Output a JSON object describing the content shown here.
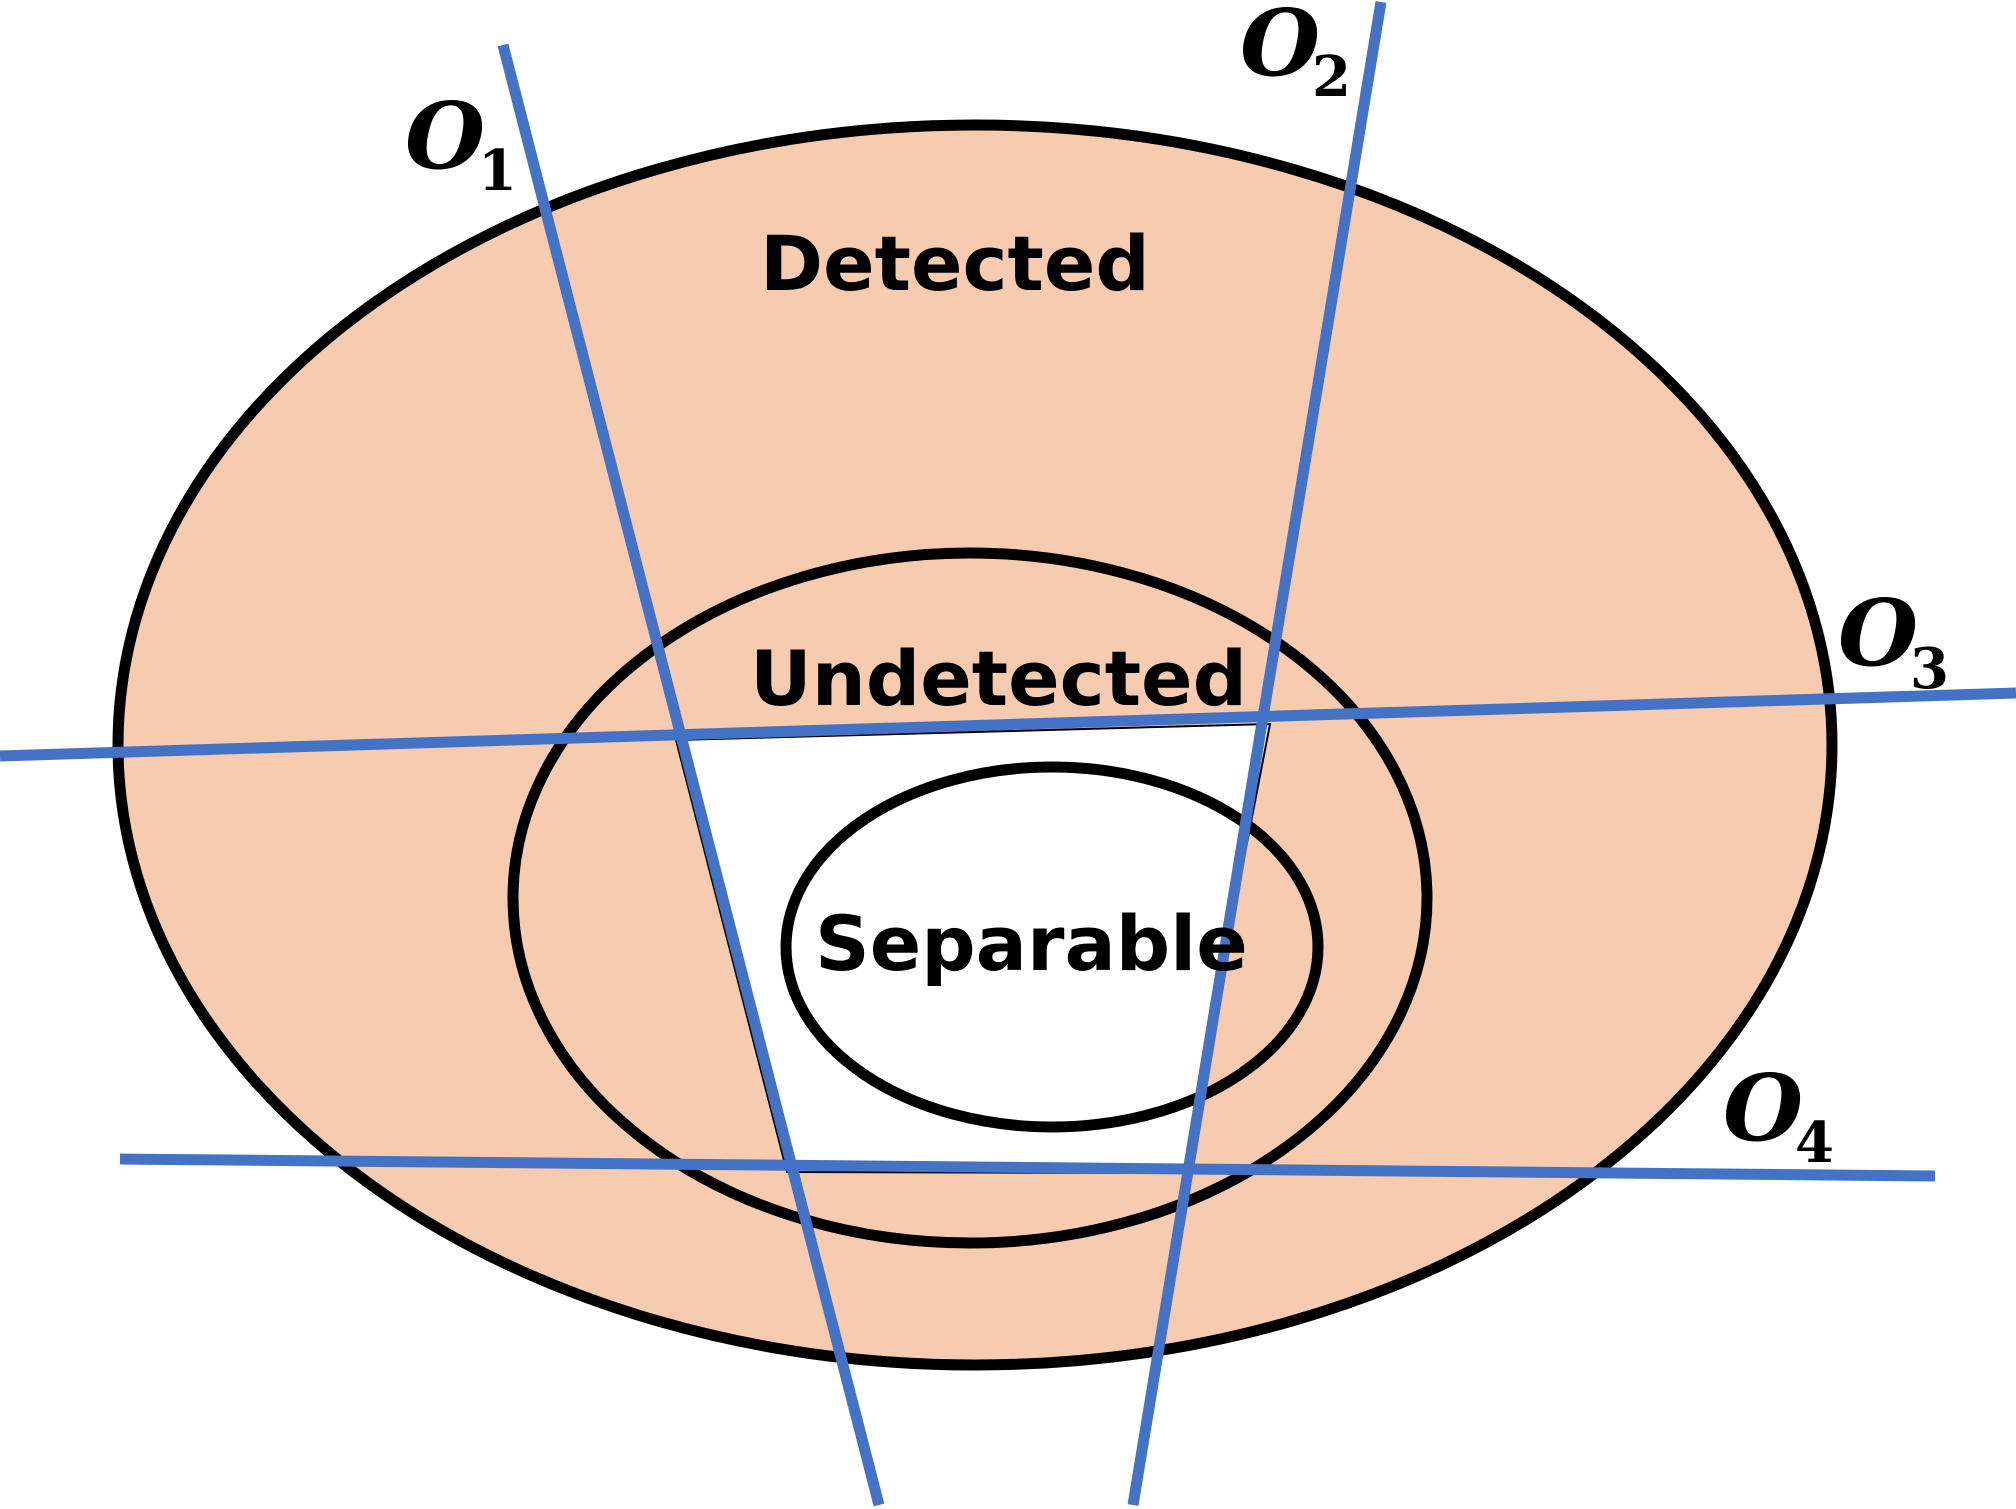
{
  "colors": {
    "detected_fill": "#f6cbb0",
    "undetected_fill": "#ffffff",
    "outline": "#000000",
    "observation_line": "#4472c4"
  },
  "regions": {
    "detected": "Detected",
    "undetected": "Undetected",
    "separable": "Separable"
  },
  "observations": [
    {
      "letter": "O",
      "subscript": "1"
    },
    {
      "letter": "O",
      "subscript": "2"
    },
    {
      "letter": "O",
      "subscript": "3"
    },
    {
      "letter": "O",
      "subscript": "4"
    }
  ]
}
